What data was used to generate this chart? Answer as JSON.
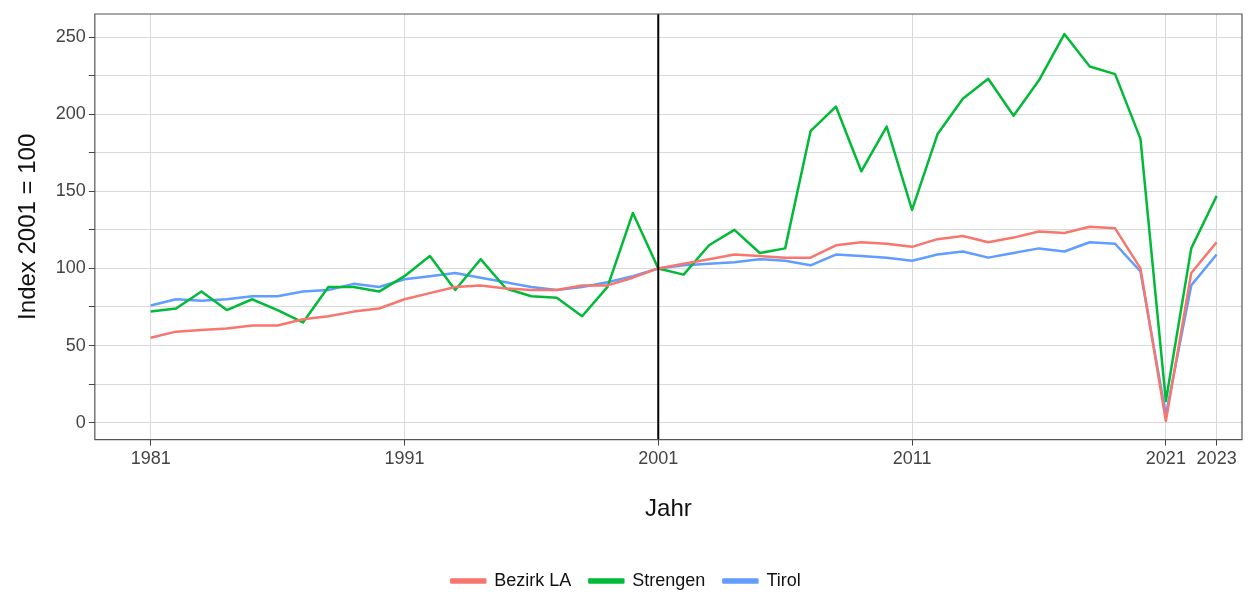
{
  "chart_data": {
    "type": "line",
    "xlabel": "Jahr",
    "ylabel": "Index 2001 = 100",
    "x": [
      1981,
      1982,
      1983,
      1984,
      1985,
      1986,
      1987,
      1988,
      1989,
      1990,
      1991,
      1992,
      1993,
      1994,
      1995,
      1996,
      1997,
      1998,
      1999,
      2000,
      2001,
      2002,
      2003,
      2004,
      2005,
      2006,
      2007,
      2008,
      2009,
      2010,
      2011,
      2012,
      2013,
      2014,
      2015,
      2016,
      2017,
      2018,
      2019,
      2020,
      2021,
      2022,
      2023
    ],
    "series": [
      {
        "name": "Bezirk LA",
        "color": "#f8766d",
        "values": [
          55,
          59,
          60,
          61,
          63,
          63,
          67,
          69,
          72,
          74,
          80,
          84,
          88,
          89,
          87,
          86,
          86,
          89,
          89,
          94,
          100,
          103,
          106,
          109,
          108,
          107,
          107,
          115,
          117,
          116,
          114,
          119,
          121,
          117,
          120,
          124,
          123,
          127,
          126,
          100,
          1,
          97,
          117
        ]
      },
      {
        "name": "Strengen",
        "color": "#00ba38",
        "values": [
          72,
          74,
          85,
          73,
          80,
          73,
          65,
          88,
          88,
          85,
          95,
          108,
          86,
          106,
          87,
          82,
          81,
          69,
          88,
          136,
          100,
          96,
          115,
          125,
          110,
          113,
          189,
          205,
          163,
          192,
          138,
          187,
          210,
          223,
          199,
          222,
          252,
          231,
          226,
          184,
          14,
          113,
          147
        ]
      },
      {
        "name": "Tirol",
        "color": "#619cff",
        "values": [
          76,
          80,
          79,
          80,
          82,
          82,
          85,
          86,
          90,
          88,
          93,
          95,
          97,
          94,
          91,
          88,
          86,
          88,
          91,
          95,
          100,
          102,
          103,
          104,
          106,
          105,
          102,
          109,
          108,
          107,
          105,
          109,
          111,
          107,
          110,
          113,
          111,
          117,
          116,
          98,
          5,
          89,
          109
        ]
      }
    ],
    "xlim": [
      1978.8,
      2024
    ],
    "xticks": [
      1981,
      1991,
      2001,
      2011,
      2021,
      2023
    ],
    "ylim": [
      -11,
      265
    ],
    "yticks": [
      0,
      {
        "value": 25,
        "label": null
      },
      50,
      {
        "value": 75,
        "label": null
      },
      100,
      {
        "value": 125,
        "label": null
      },
      150,
      {
        "value": 175,
        "label": null
      },
      200,
      {
        "value": 225,
        "label": null
      },
      250
    ],
    "ref_lines": [
      {
        "axis": "x",
        "value": 2001,
        "color": "#000000"
      }
    ],
    "grid": true,
    "legend": "bottom",
    "marker": "none",
    "line_style": "solid"
  }
}
